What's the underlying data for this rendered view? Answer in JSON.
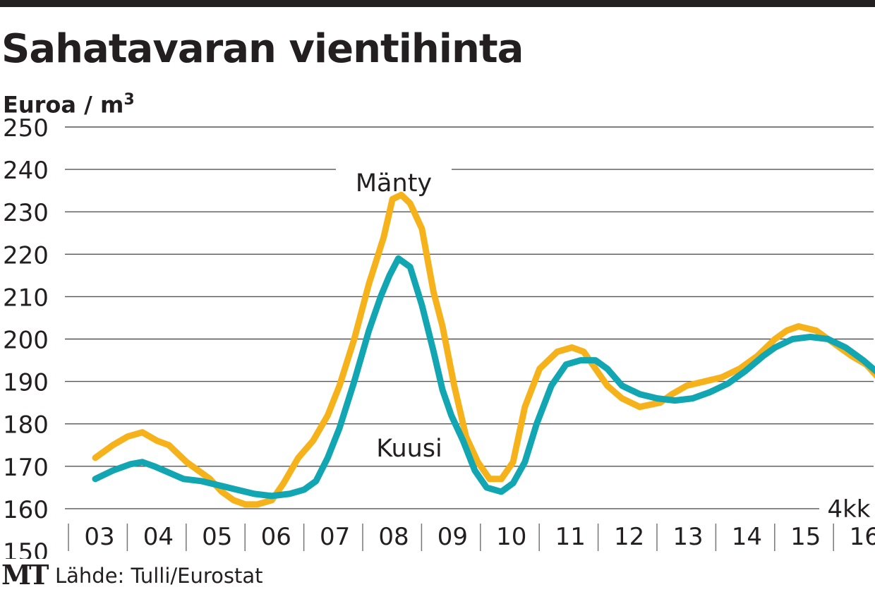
{
  "header": {
    "title": "Sahatavaran vientihinta",
    "unit_label": "Euroa / m",
    "unit_superscript": "3"
  },
  "footer": {
    "logo": "MT",
    "source": "Lähde: Tulli/Eurostat"
  },
  "chart_data": {
    "type": "line",
    "title": "Sahatavaran vientihinta",
    "ylabel": "Euroa / m3",
    "xlabel": "",
    "ylim": [
      150,
      250
    ],
    "yticks": [
      250,
      240,
      230,
      220,
      210,
      200,
      190,
      180,
      170,
      160,
      150
    ],
    "xlim": [
      2003,
      2016.7
    ],
    "categories": [
      "03",
      "04",
      "05",
      "06",
      "07",
      "08",
      "09",
      "10",
      "11",
      "12",
      "13",
      "14",
      "15",
      "16"
    ],
    "grid": "horizontal",
    "annotation": "4kk",
    "colors": {
      "manty": "#f6b21b",
      "kuusi": "#12a6b2",
      "grid": "#555555"
    },
    "series": [
      {
        "name": "Mänty",
        "label_year": 2008,
        "label_value": 237,
        "x": [
          2003.0,
          2003.3,
          2003.55,
          2003.8,
          2004.05,
          2004.25,
          2004.4,
          2004.55,
          2004.75,
          2004.95,
          2005.15,
          2005.35,
          2005.55,
          2005.75,
          2006.0,
          2006.2,
          2006.45,
          2006.7,
          2006.95,
          2007.15,
          2007.4,
          2007.65,
          2007.9,
          2008.05,
          2008.2,
          2008.35,
          2008.55,
          2008.75,
          2008.9,
          2009.1,
          2009.3,
          2009.5,
          2009.7,
          2009.9,
          2010.1,
          2010.3,
          2010.55,
          2010.85,
          2011.1,
          2011.3,
          2011.5,
          2011.7,
          2011.95,
          2012.25,
          2012.6,
          2012.8,
          2013.05,
          2013.35,
          2013.65,
          2013.95,
          2014.25,
          2014.55,
          2014.75,
          2014.95,
          2015.25,
          2015.55,
          2015.85,
          2016.1,
          2016.3,
          2016.55
        ],
        "values": [
          172,
          175,
          177,
          178,
          176,
          175,
          173,
          171,
          169,
          167,
          164,
          162,
          161,
          161,
          162,
          166,
          172,
          176,
          182,
          189,
          200,
          213,
          224,
          233,
          234,
          232,
          226,
          211,
          203,
          189,
          177,
          171,
          167,
          167,
          171,
          184,
          193,
          197,
          198,
          197,
          193,
          189,
          186,
          184,
          185,
          187,
          189,
          190,
          191,
          193,
          196,
          200,
          202,
          203,
          202,
          199,
          196,
          194,
          191,
          188
        ]
      },
      {
        "name": "Kuusi",
        "label_year": 2008.3,
        "label_value": 174.5,
        "x": [
          2003.0,
          2003.3,
          2003.6,
          2003.8,
          2004.0,
          2004.25,
          2004.5,
          2004.8,
          2005.1,
          2005.4,
          2005.7,
          2006.0,
          2006.3,
          2006.55,
          2006.75,
          2006.95,
          2007.15,
          2007.4,
          2007.65,
          2007.85,
          2008.0,
          2008.15,
          2008.35,
          2008.55,
          2008.75,
          2008.9,
          2009.05,
          2009.25,
          2009.45,
          2009.65,
          2009.9,
          2010.1,
          2010.3,
          2010.5,
          2010.75,
          2011.0,
          2011.25,
          2011.5,
          2011.7,
          2011.95,
          2012.25,
          2012.55,
          2012.85,
          2013.15,
          2013.45,
          2013.75,
          2014.05,
          2014.35,
          2014.55,
          2014.85,
          2015.15,
          2015.45,
          2015.75,
          2016.05,
          2016.3,
          2016.55
        ],
        "values": [
          167,
          169,
          170.5,
          171,
          170,
          168.5,
          167,
          166.5,
          165.5,
          164.5,
          163.5,
          163,
          163.5,
          164.5,
          166.5,
          172,
          179,
          190,
          202,
          210,
          215,
          219,
          217,
          208,
          197,
          188,
          182,
          176,
          169,
          165,
          164,
          166,
          171,
          180,
          189,
          194,
          195,
          195,
          193,
          189,
          187,
          186,
          185.5,
          186,
          187.5,
          189.5,
          192.5,
          196,
          198,
          200,
          200.5,
          200,
          198,
          195,
          192,
          189
        ]
      }
    ]
  }
}
